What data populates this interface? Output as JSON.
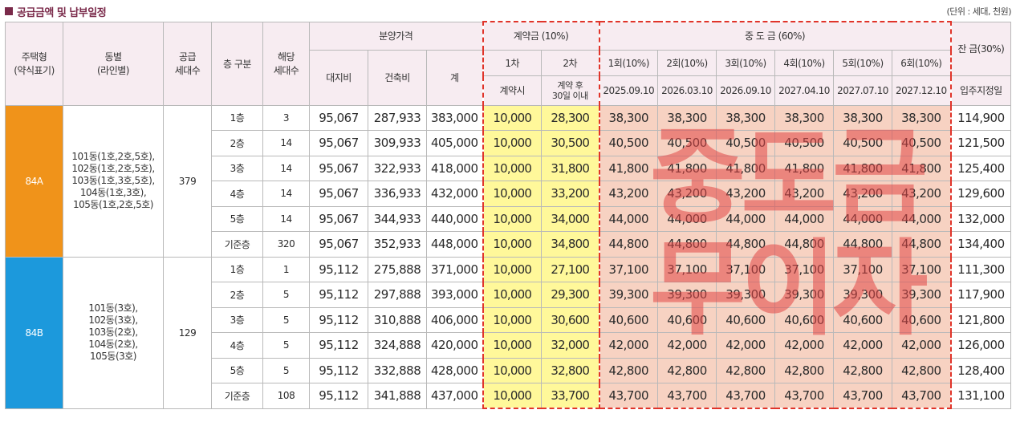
{
  "title": "공급금액 및 납부일정",
  "unit": "(단위 : 세대, 천원)",
  "watermark_lines": [
    "중도금",
    "무이자"
  ],
  "headers": {
    "housing_type": [
      "주택형",
      "(약식표기)"
    ],
    "dong": [
      "동별",
      "(라인별)"
    ],
    "supply_units": [
      "공급",
      "세대수"
    ],
    "floor": "층 구분",
    "applicable_units": [
      "해당",
      "세대수"
    ],
    "price_group": "분양가격",
    "land": "대지비",
    "building": "건축비",
    "total": "계",
    "deposit_group": "계약금 (10%)",
    "deposit_1": "1차",
    "deposit_2": "2차",
    "deposit_1_when": "계약시",
    "deposit_2_when": [
      "계약 후",
      "30일 이내"
    ],
    "interim_group": "중 도 금 (60%)",
    "interim_labels": [
      "1회(10%)",
      "2회(10%)",
      "3회(10%)",
      "4회(10%)",
      "5회(10%)",
      "6회(10%)"
    ],
    "interim_dates": [
      "2025.09.10",
      "2026.03.10",
      "2026.09.10",
      "2027.04.10",
      "2027.07.10",
      "2027.12.10"
    ],
    "balance": "잔 금(30%)",
    "balance_when": "입주지정일"
  },
  "groups": [
    {
      "type": "84A",
      "dong": [
        "101동(1호,2호,5호),",
        "102동(1호,2호,5호),",
        "103동(1호,3호,5호),",
        "104동(1호,3호),",
        "105동(1호,2호,5호)"
      ],
      "supply_units": "379",
      "rows": [
        {
          "floor": "1층",
          "units": "3",
          "land": "95,067",
          "building": "287,933",
          "total": "383,000",
          "dep1": "10,000",
          "dep2": "28,300",
          "interim": [
            "38,300",
            "38,300",
            "38,300",
            "38,300",
            "38,300",
            "38,300"
          ],
          "balance": "114,900"
        },
        {
          "floor": "2층",
          "units": "14",
          "land": "95,067",
          "building": "309,933",
          "total": "405,000",
          "dep1": "10,000",
          "dep2": "30,500",
          "interim": [
            "40,500",
            "40,500",
            "40,500",
            "40,500",
            "40,500",
            "40,500"
          ],
          "balance": "121,500"
        },
        {
          "floor": "3층",
          "units": "14",
          "land": "95,067",
          "building": "322,933",
          "total": "418,000",
          "dep1": "10,000",
          "dep2": "31,800",
          "interim": [
            "41,800",
            "41,800",
            "41,800",
            "41,800",
            "41,800",
            "41,800"
          ],
          "balance": "125,400"
        },
        {
          "floor": "4층",
          "units": "14",
          "land": "95,067",
          "building": "336,933",
          "total": "432,000",
          "dep1": "10,000",
          "dep2": "33,200",
          "interim": [
            "43,200",
            "43,200",
            "43,200",
            "43,200",
            "43,200",
            "43,200"
          ],
          "balance": "129,600"
        },
        {
          "floor": "5층",
          "units": "14",
          "land": "95,067",
          "building": "344,933",
          "total": "440,000",
          "dep1": "10,000",
          "dep2": "34,000",
          "interim": [
            "44,000",
            "44,000",
            "44,000",
            "44,000",
            "44,000",
            "44,000"
          ],
          "balance": "132,000"
        },
        {
          "floor": "기준층",
          "units": "320",
          "land": "95,067",
          "building": "352,933",
          "total": "448,000",
          "dep1": "10,000",
          "dep2": "34,800",
          "interim": [
            "44,800",
            "44,800",
            "44,800",
            "44,800",
            "44,800",
            "44,800"
          ],
          "balance": "134,400"
        }
      ]
    },
    {
      "type": "84B",
      "dong": [
        "101동(3호),",
        "102동(3호),",
        "103동(2호),",
        "104동(2호),",
        "105동(3호)"
      ],
      "supply_units": "129",
      "rows": [
        {
          "floor": "1층",
          "units": "1",
          "land": "95,112",
          "building": "275,888",
          "total": "371,000",
          "dep1": "10,000",
          "dep2": "27,100",
          "interim": [
            "37,100",
            "37,100",
            "37,100",
            "37,100",
            "37,100",
            "37,100"
          ],
          "balance": "111,300"
        },
        {
          "floor": "2층",
          "units": "5",
          "land": "95,112",
          "building": "297,888",
          "total": "393,000",
          "dep1": "10,000",
          "dep2": "29,300",
          "interim": [
            "39,300",
            "39,300",
            "39,300",
            "39,300",
            "39,300",
            "39,300"
          ],
          "balance": "117,900"
        },
        {
          "floor": "3층",
          "units": "5",
          "land": "95,112",
          "building": "310,888",
          "total": "406,000",
          "dep1": "10,000",
          "dep2": "30,600",
          "interim": [
            "40,600",
            "40,600",
            "40,600",
            "40,600",
            "40,600",
            "40,600"
          ],
          "balance": "121,800"
        },
        {
          "floor": "4층",
          "units": "5",
          "land": "95,112",
          "building": "324,888",
          "total": "420,000",
          "dep1": "10,000",
          "dep2": "32,000",
          "interim": [
            "42,000",
            "42,000",
            "42,000",
            "42,000",
            "42,000",
            "42,000"
          ],
          "balance": "126,000"
        },
        {
          "floor": "5층",
          "units": "5",
          "land": "95,112",
          "building": "332,888",
          "total": "428,000",
          "dep1": "10,000",
          "dep2": "32,800",
          "interim": [
            "42,800",
            "42,800",
            "42,800",
            "42,800",
            "42,800",
            "42,800"
          ],
          "balance": "128,400"
        },
        {
          "floor": "기준층",
          "units": "108",
          "land": "95,112",
          "building": "341,888",
          "total": "437,000",
          "dep1": "10,000",
          "dep2": "33,700",
          "interim": [
            "43,700",
            "43,700",
            "43,700",
            "43,700",
            "43,700",
            "43,700"
          ],
          "balance": "131,100"
        }
      ]
    }
  ],
  "colors": {
    "type_84A": "#f0931a",
    "type_84B": "#1c99dc",
    "deposit_fill": "#fff89a",
    "interim_fill": "#f7d2c2",
    "header_fill": "#f7ecf1",
    "dashed_outline": "#e0342a",
    "title_color": "#7a2a4a"
  }
}
